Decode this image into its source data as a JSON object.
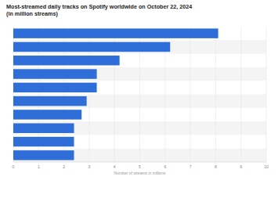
{
  "chart_data": {
    "type": "bar",
    "orientation": "horizontal",
    "title": "Most-streamed daily tracks on Spotify worldwide on October 22, 2024 (in million streams)",
    "x_label": "Number of streams in millions",
    "categories": [
      null,
      null,
      null,
      null,
      null,
      null,
      null,
      null,
      null,
      null
    ],
    "values": [
      8.1,
      6.2,
      4.2,
      3.3,
      3.3,
      2.9,
      2.7,
      2.4,
      2.4,
      2.4
    ],
    "color": "#2f6ed8",
    "xlim": [
      0,
      10
    ],
    "xticks": [
      0,
      1,
      2,
      3,
      4,
      5,
      6,
      7,
      8,
      9,
      10
    ],
    "grid": true,
    "tick_labels": "x"
  }
}
